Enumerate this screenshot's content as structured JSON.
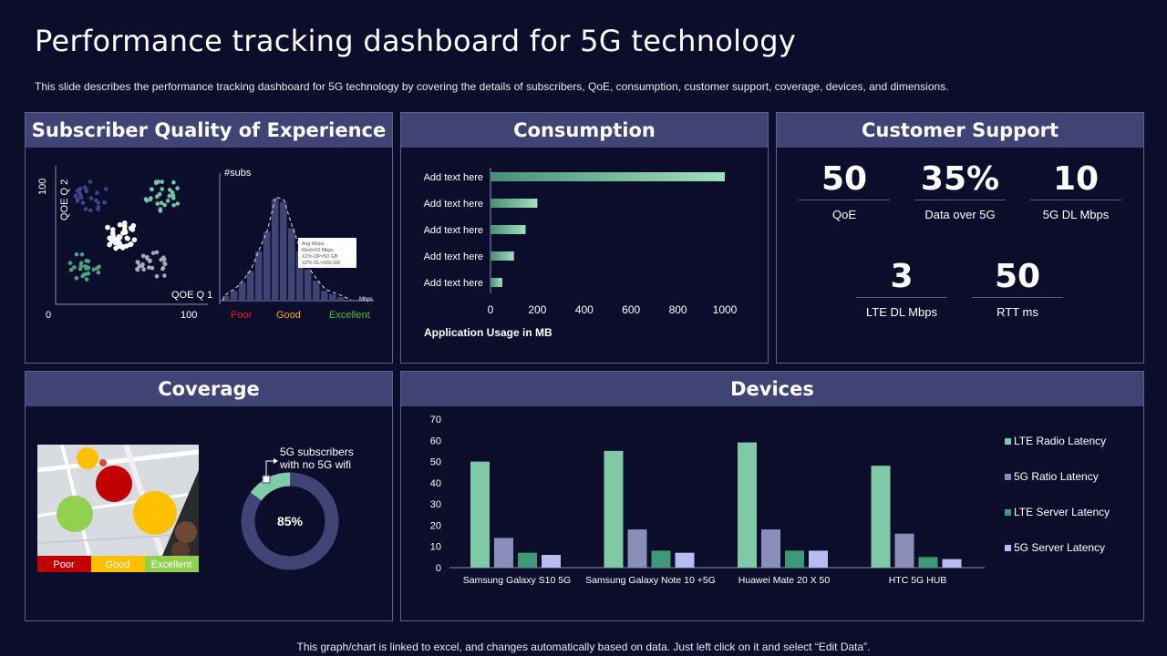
{
  "header": {
    "title": "Performance tracking dashboard for 5G technology",
    "subtitle": "This slide describes the performance tracking dashboard for 5G technology by covering the details of subscribers, QoE, consumption, customer support, coverage, devices, and dimensions."
  },
  "footer": {
    "note": "This graph/chart is linked to excel, and changes automatically based on data. Just left click on it and select “Edit Data”."
  },
  "qoe": {
    "title": "Subscriber Quality of Experience",
    "y_label": "QOE Q 2",
    "x_label": "QOE Q 1",
    "y_max": "100",
    "x_min": "0",
    "x_max": "100",
    "hist_title": "#subs",
    "callout": [
      "Avg Mbps",
      "Med=10 Mbps",
      "X2% DP=50 GB",
      "X2% DL=500 GB"
    ],
    "hist_unit": "Mbps",
    "hist_values": [
      3,
      6,
      11,
      18,
      30,
      42,
      62,
      60,
      44,
      30,
      19,
      12,
      6,
      4,
      2
    ],
    "bands": [
      {
        "label": "Poor",
        "color": "#e02020"
      },
      {
        "label": "Good",
        "color": "#f5a623"
      },
      {
        "label": "Excellent",
        "color": "#3ec43e"
      }
    ]
  },
  "consumption": {
    "title": "Consumption",
    "xlabel": "Application Usage  in MB",
    "ticks": [
      "0",
      "200",
      "400",
      "600",
      "800",
      "1000"
    ],
    "bars": [
      {
        "label": "Add text here",
        "value": 1000
      },
      {
        "label": "Add text here",
        "value": 200
      },
      {
        "label": "Add text here",
        "value": 150
      },
      {
        "label": "Add text here",
        "value": 100
      },
      {
        "label": "Add text here",
        "value": 50
      }
    ]
  },
  "support": {
    "title": "Customer Support",
    "stats": [
      {
        "value": "50",
        "caption": "QoE"
      },
      {
        "value": "35%",
        "caption": "Data over 5G"
      },
      {
        "value": "10",
        "caption": "5G DL Mbps"
      },
      {
        "value": "3",
        "caption": "LTE DL Mbps"
      },
      {
        "value": "50",
        "caption": "RTT  ms"
      }
    ]
  },
  "coverage": {
    "title": "Coverage",
    "legend": [
      {
        "label": "Poor",
        "color": "#c00000"
      },
      {
        "label": "Good",
        "color": "#ffc000"
      },
      {
        "label": "Excellent",
        "color": "#92d050"
      }
    ],
    "donut_note": "5G subscribers with no 5G wifi",
    "donut_note_line1": "5G subscribers",
    "donut_note_line2": "with no 5G wifi",
    "donut_percent": 85,
    "donut_label": "85%",
    "donut_main_color": "#3f4474",
    "donut_rest_color": "#80cca8"
  },
  "devices": {
    "title": "Devices",
    "chart_data": {
      "type": "bar",
      "categories": [
        "Samsung Galaxy S10 5G",
        "Samsung Galaxy Note 10 +5G",
        "Huawei Mate 20 X 50",
        "HTC 5G HUB"
      ],
      "series": [
        {
          "name": "LTE Radio Latency",
          "color": "#7fc9a7",
          "values": [
            50,
            55,
            59,
            48
          ]
        },
        {
          "name": "5G Ratio Latency",
          "color": "#8a8fba",
          "values": [
            14,
            18,
            18,
            16
          ]
        },
        {
          "name": "LTE Server Latency",
          "color": "#3e9a74",
          "values": [
            7,
            8,
            8,
            5
          ]
        },
        {
          "name": "5G Server Latency",
          "color": "#b8bcf0",
          "values": [
            6,
            7,
            8,
            4
          ]
        }
      ],
      "ylim": [
        0,
        70
      ],
      "yticks": [
        "0",
        "10",
        "20",
        "30",
        "40",
        "50",
        "60",
        "70"
      ],
      "legend_position": "right"
    }
  }
}
